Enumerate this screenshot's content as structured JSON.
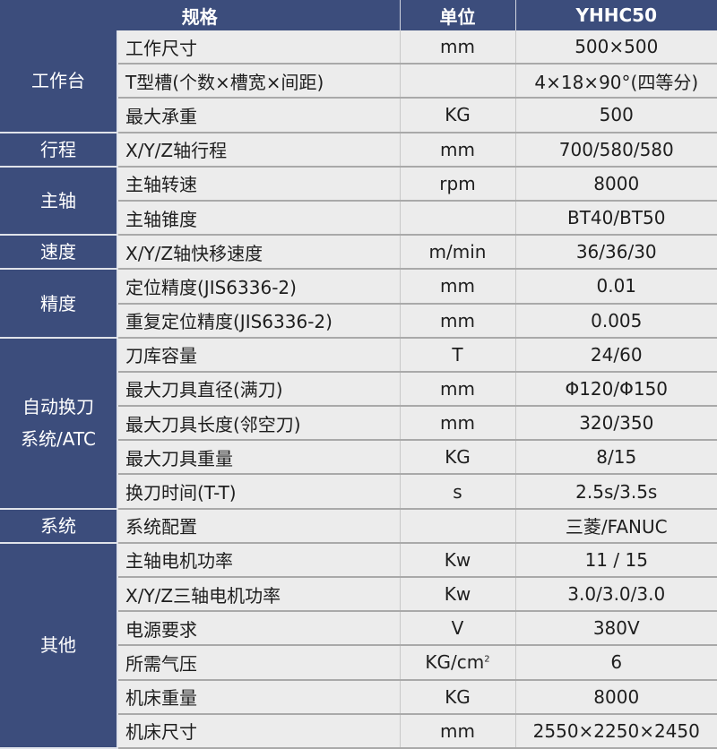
{
  "header": {
    "spec": "规格",
    "unit": "单位",
    "model": "YHHC50"
  },
  "groups": [
    {
      "category": "工作台",
      "rows": [
        {
          "spec": "工作尺寸",
          "unit": "mm",
          "value": "500×500"
        },
        {
          "spec": "T型槽(个数×槽宽×间距)",
          "unit": "",
          "value": "4×18×90°(四等分)"
        },
        {
          "spec": "最大承重",
          "unit": "KG",
          "value": "500"
        }
      ]
    },
    {
      "category": "行程",
      "rows": [
        {
          "spec": "X/Y/Z轴行程",
          "unit": "mm",
          "value": "700/580/580"
        }
      ]
    },
    {
      "category": "主轴",
      "rows": [
        {
          "spec": "主轴转速",
          "unit": "rpm",
          "value": "8000"
        },
        {
          "spec": "主轴锥度",
          "unit": "",
          "value": "BT40/BT50"
        }
      ]
    },
    {
      "category": "速度",
      "rows": [
        {
          "spec": "X/Y/Z轴快移速度",
          "unit": "m/min",
          "value": "36/36/30"
        }
      ]
    },
    {
      "category": "精度",
      "rows": [
        {
          "spec": "定位精度(JIS6336-2)",
          "unit": "mm",
          "value": "0.01"
        },
        {
          "spec": "重复定位精度(JIS6336-2)",
          "unit": "mm",
          "value": "0.005"
        }
      ]
    },
    {
      "category": "自动换刀 系统/ATC",
      "rows": [
        {
          "spec": "刀库容量",
          "unit": "T",
          "value": "24/60"
        },
        {
          "spec": "最大刀具直径(满刀)",
          "unit": "mm",
          "value": "Φ120/Φ150"
        },
        {
          "spec": "最大刀具长度(邻空刀)",
          "unit": "mm",
          "value": "320/350"
        },
        {
          "spec": "最大刀具重量",
          "unit": "KG",
          "value": "8/15"
        },
        {
          "spec": "换刀时间(T-T)",
          "unit": "s",
          "value": "2.5s/3.5s"
        }
      ]
    },
    {
      "category": "系统",
      "rows": [
        {
          "spec": "系统配置",
          "unit": "",
          "value": "三菱/FANUC"
        }
      ]
    },
    {
      "category": "其他",
      "rows": [
        {
          "spec": "主轴电机功率",
          "unit": "Kw",
          "value": "11 / 15"
        },
        {
          "spec": "X/Y/Z三轴电机功率",
          "unit": "Kw",
          "value": "3.0/3.0/3.0"
        },
        {
          "spec": "电源要求",
          "unit": "V",
          "value": "380V"
        },
        {
          "spec": "所需气压",
          "unit": "KG/cm",
          "unit_sup": "2",
          "value": "6"
        },
        {
          "spec": "机床重量",
          "unit": "KG",
          "value": "8000"
        },
        {
          "spec": "机床尺寸",
          "unit": "mm",
          "value": "2550×2250×2450"
        }
      ]
    }
  ],
  "colors": {
    "header_bg": "#3c4d7c",
    "row_bg": "#ececec"
  }
}
